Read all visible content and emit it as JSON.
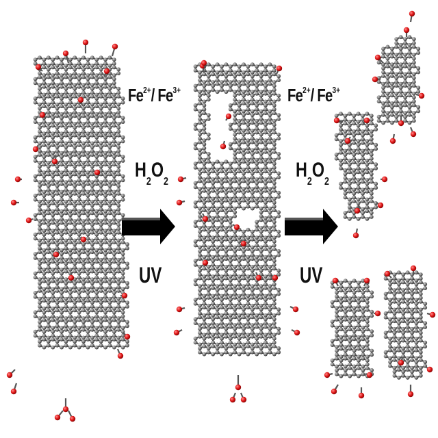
{
  "diagram": {
    "step1": {
      "catalyst": {
        "fe_left": "Fe",
        "charge_left": "2+",
        "slash": "/ Fe",
        "charge_right": "3+"
      },
      "oxidant": {
        "h": "H",
        "sub1": "2",
        "o": "O",
        "sub2": "2"
      },
      "light": "UV"
    },
    "step2": {
      "catalyst": {
        "fe_left": "Fe",
        "charge_left": "2+",
        "slash": "/ Fe",
        "charge_right": "3+"
      },
      "oxidant": {
        "h": "H",
        "sub1": "2",
        "o": "O",
        "sub2": "2"
      },
      "light": "UV"
    }
  },
  "colors": {
    "carbon": "#6e6e6e",
    "carbon_dark": "#3a3a3a",
    "oxygen": "#d41414",
    "arrow": "#000000"
  },
  "icons": {
    "arrow": "right-arrow-icon",
    "sheet": "graphene-oxide-sheet",
    "fragment": "graphene-quantum-dot"
  }
}
